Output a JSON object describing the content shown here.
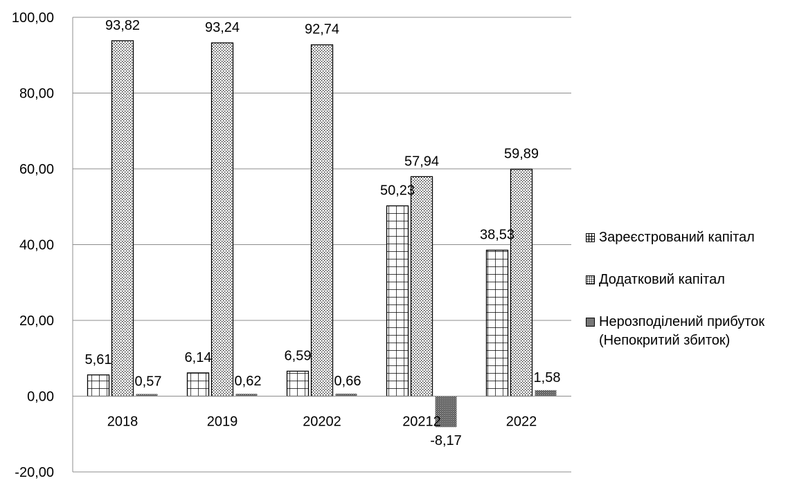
{
  "chart_data": {
    "type": "bar",
    "title": "",
    "xlabel": "",
    "ylabel": "",
    "categories": [
      "2018",
      "2019",
      "20202",
      "20212",
      "2022"
    ],
    "series": [
      {
        "name": "Зареєстрований капітал",
        "values": [
          5.61,
          6.14,
          6.59,
          50.23,
          38.53
        ],
        "value_labels": [
          "5,61",
          "6,14",
          "6,59",
          "50,23",
          "38,53"
        ],
        "pattern": "grid"
      },
      {
        "name": "Додатковий капітал",
        "values": [
          93.82,
          93.24,
          92.74,
          57.94,
          59.89
        ],
        "value_labels": [
          "93,82",
          "93,24",
          "92,74",
          "57,94",
          "59,89"
        ],
        "pattern": "dots"
      },
      {
        "name": "Нерозподілений прибуток (Непокритий збиток)",
        "values": [
          0.57,
          0.62,
          0.66,
          -8.17,
          1.58
        ],
        "value_labels": [
          "0,57",
          "0,62",
          "0,66",
          "-8,17",
          "1,58"
        ],
        "pattern": "dense"
      }
    ],
    "ylim": [
      -20,
      100
    ],
    "yticks": [
      100,
      80,
      60,
      40,
      20,
      0,
      -20
    ],
    "ytick_labels": [
      "100,00",
      "80,00",
      "60,00",
      "40,00",
      "20,00",
      "0,00",
      "-20,00"
    ],
    "grid": true,
    "legend_position": "right"
  },
  "legend": {
    "items": [
      {
        "label": "Зареєстрований капітал"
      },
      {
        "label": "Додатковий капітал"
      },
      {
        "label": "Нерозподілений прибуток (Непокритий збиток)"
      }
    ]
  }
}
